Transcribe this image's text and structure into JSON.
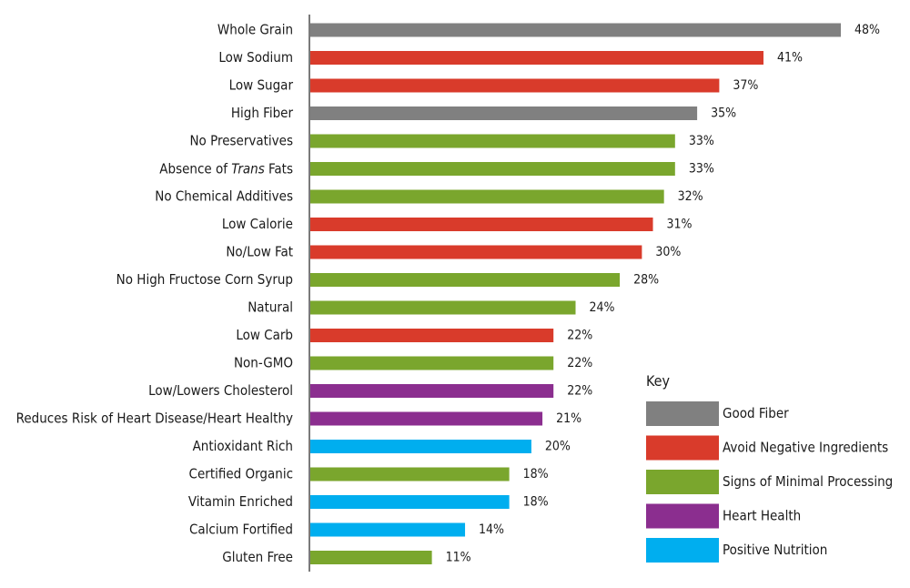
{
  "chart_data": {
    "type": "bar",
    "orientation": "horizontal",
    "value_suffix": "%",
    "xlim": [
      0,
      48
    ],
    "grid": false,
    "legend_position": "bottom-right",
    "legend": {
      "title": "Key",
      "entries": [
        {
          "id": "fiber",
          "name": "Good Fiber",
          "color": "#808080"
        },
        {
          "id": "negative",
          "name": "Avoid Negative Ingredients",
          "color": "#d93b2b"
        },
        {
          "id": "minimal",
          "name": "Signs of Minimal Processing",
          "color": "#7aa62d"
        },
        {
          "id": "heart",
          "name": "Heart Health",
          "color": "#8b2e8f"
        },
        {
          "id": "nutrition",
          "name": "Positive Nutrition",
          "color": "#00aeef"
        }
      ]
    },
    "bars": [
      {
        "label": "Whole Grain",
        "value": 48,
        "group": "fiber"
      },
      {
        "label": "Low Sodium",
        "value": 41,
        "group": "negative"
      },
      {
        "label": "Low Sugar",
        "value": 37,
        "group": "negative"
      },
      {
        "label": "High Fiber",
        "value": 35,
        "group": "fiber"
      },
      {
        "label": "No Preservatives",
        "value": 33,
        "group": "minimal"
      },
      {
        "label_parts": [
          "Absence of ",
          "Trans",
          " Fats"
        ],
        "label": "Absence of Trans Fats",
        "value": 33,
        "group": "minimal"
      },
      {
        "label": "No Chemical Additives",
        "value": 32,
        "group": "minimal"
      },
      {
        "label": "Low Calorie",
        "value": 31,
        "group": "negative"
      },
      {
        "label": "No/Low Fat",
        "value": 30,
        "group": "negative"
      },
      {
        "label": "No High Fructose Corn Syrup",
        "value": 28,
        "group": "minimal"
      },
      {
        "label": "Natural",
        "value": 24,
        "group": "minimal"
      },
      {
        "label": "Low Carb",
        "value": 22,
        "group": "negative"
      },
      {
        "label": "Non-GMO",
        "value": 22,
        "group": "minimal"
      },
      {
        "label": "Low/Lowers Cholesterol",
        "value": 22,
        "group": "heart"
      },
      {
        "label": "Reduces Risk of Heart Disease/Heart Healthy",
        "value": 21,
        "group": "heart"
      },
      {
        "label": "Antioxidant Rich",
        "value": 20,
        "group": "nutrition"
      },
      {
        "label": "Certified Organic",
        "value": 18,
        "group": "minimal"
      },
      {
        "label": "Vitamin Enriched",
        "value": 18,
        "group": "nutrition"
      },
      {
        "label": "Calcium Fortified",
        "value": 14,
        "group": "nutrition"
      },
      {
        "label": "Gluten Free",
        "value": 11,
        "group": "minimal"
      }
    ]
  }
}
